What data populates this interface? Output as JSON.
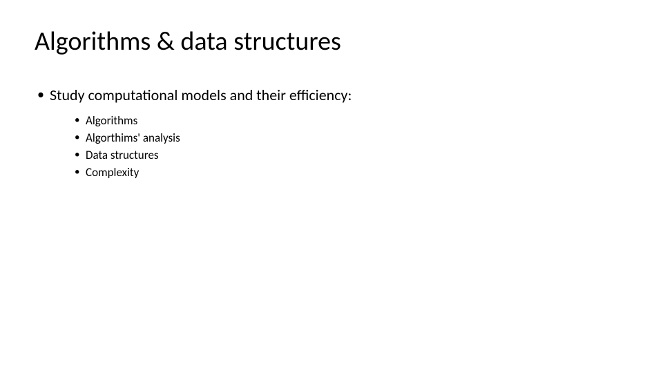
{
  "slide": {
    "title": "Algorithms & data structures",
    "bullets": {
      "level1": "Study computational models and their efficiency:",
      "level2": [
        "Algorithms",
        "Algorthims' analysis",
        "Data structures",
        "Complexity"
      ]
    },
    "styling": {
      "background_color": "#ffffff",
      "text_color": "#000000",
      "title_fontsize": 38,
      "level1_fontsize": 22,
      "level2_fontsize": 17,
      "font_family": "Calibri"
    }
  }
}
